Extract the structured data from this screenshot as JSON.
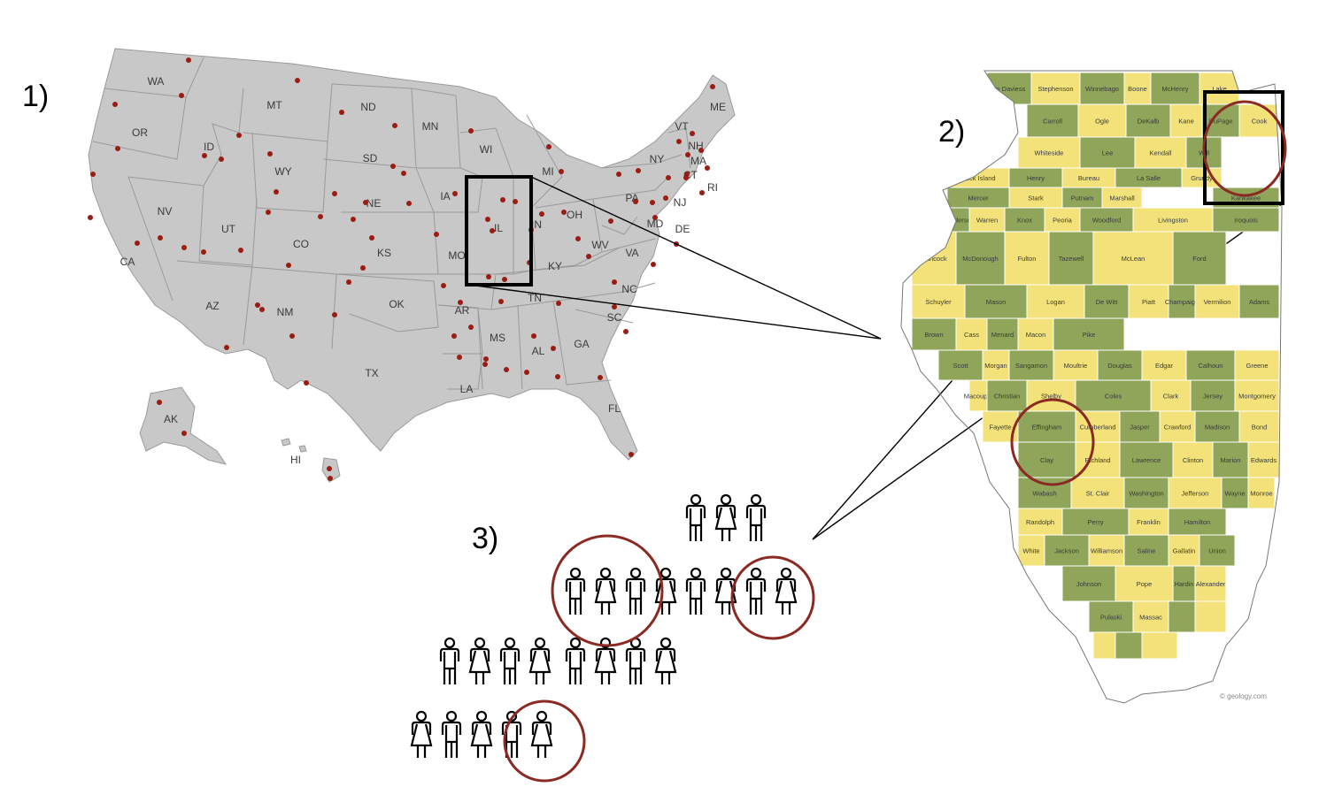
{
  "steps": {
    "step1": "1)",
    "step2": "2)",
    "step3": "3)"
  },
  "us_map": {
    "states": [
      {
        "abbr": "WA"
      },
      {
        "abbr": "OR"
      },
      {
        "abbr": "CA"
      },
      {
        "abbr": "ID"
      },
      {
        "abbr": "NV"
      },
      {
        "abbr": "MT"
      },
      {
        "abbr": "WY"
      },
      {
        "abbr": "UT"
      },
      {
        "abbr": "AZ"
      },
      {
        "abbr": "CO"
      },
      {
        "abbr": "NM"
      },
      {
        "abbr": "ND"
      },
      {
        "abbr": "SD"
      },
      {
        "abbr": "NE"
      },
      {
        "abbr": "KS"
      },
      {
        "abbr": "OK"
      },
      {
        "abbr": "TX"
      },
      {
        "abbr": "MN"
      },
      {
        "abbr": "IA"
      },
      {
        "abbr": "MO"
      },
      {
        "abbr": "AR"
      },
      {
        "abbr": "LA"
      },
      {
        "abbr": "WI"
      },
      {
        "abbr": "IL"
      },
      {
        "abbr": "MI"
      },
      {
        "abbr": "IN"
      },
      {
        "abbr": "OH"
      },
      {
        "abbr": "KY"
      },
      {
        "abbr": "TN"
      },
      {
        "abbr": "MS"
      },
      {
        "abbr": "AL"
      },
      {
        "abbr": "GA"
      },
      {
        "abbr": "FL"
      },
      {
        "abbr": "SC"
      },
      {
        "abbr": "NC"
      },
      {
        "abbr": "VA"
      },
      {
        "abbr": "WV"
      },
      {
        "abbr": "PA"
      },
      {
        "abbr": "NY"
      },
      {
        "abbr": "MD"
      },
      {
        "abbr": "DE"
      },
      {
        "abbr": "NJ"
      },
      {
        "abbr": "CT"
      },
      {
        "abbr": "RI"
      },
      {
        "abbr": "MA"
      },
      {
        "abbr": "VT"
      },
      {
        "abbr": "NH"
      },
      {
        "abbr": "ME"
      },
      {
        "abbr": "AK"
      },
      {
        "abbr": "HI"
      }
    ],
    "map_color": "#c8c8c8",
    "dot_color": "#9b1c14",
    "zoom_box_label": "IL"
  },
  "il_map": {
    "counties": [
      "Jo Daviess",
      "Stephenson",
      "Winnebago",
      "Boone",
      "McHenry",
      "Lake",
      "Carroll",
      "Ogle",
      "DeKalb",
      "Kane",
      "DuPage",
      "Cook",
      "Whiteside",
      "Lee",
      "Kendall",
      "Will",
      "Rock Island",
      "Henry",
      "Bureau",
      "La Salle",
      "Grundy",
      "Mercer",
      "Stark",
      "Putnam",
      "Marshall",
      "Kankakee",
      "Henderson",
      "Warren",
      "Knox",
      "Peoria",
      "Woodford",
      "Livingston",
      "Iroquois",
      "Hancock",
      "McDonough",
      "Fulton",
      "Tazewell",
      "McLean",
      "Ford",
      "Schuyler",
      "Mason",
      "Logan",
      "De Witt",
      "Piatt",
      "Champaign",
      "Vermilion",
      "Adams",
      "Brown",
      "Cass",
      "Menard",
      "Macon",
      "Pike",
      "Scott",
      "Morgan",
      "Sangamon",
      "Moultrie",
      "Douglas",
      "Edgar",
      "Calhoun",
      "Greene",
      "Macoupin",
      "Christian",
      "Shelby",
      "Coles",
      "Clark",
      "Jersey",
      "Montgomery",
      "Fayette",
      "Effingham",
      "Cumberland",
      "Jasper",
      "Crawford",
      "Madison",
      "Bond",
      "Clay",
      "Richland",
      "Lawrence",
      "Clinton",
      "Marion",
      "Edwards",
      "Wabash",
      "St. Clair",
      "Washington",
      "Jefferson",
      "Wayne",
      "Monroe",
      "Randolph",
      "Perry",
      "Franklin",
      "Hamilton",
      "White",
      "Jackson",
      "Williamson",
      "Saline",
      "Gallatin",
      "Union",
      "Johnson",
      "Pope",
      "Hardin",
      "Alexander",
      "Pulaski",
      "Massac"
    ],
    "palette": [
      "#8fa65a",
      "#e8946b",
      "#f3e27a",
      "#f0b85c"
    ],
    "credit": "© geology.com"
  },
  "people": {
    "highlight_color": "#8b2a22",
    "icon_color": "#000000"
  }
}
